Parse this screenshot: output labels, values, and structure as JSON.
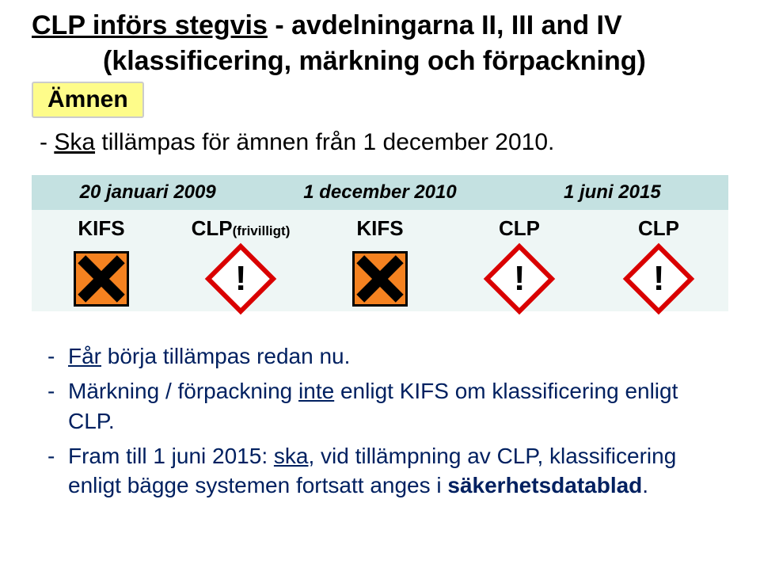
{
  "title": {
    "line1_underlined": "CLP införs stegvis",
    "line1_rest": " - avdelningarna II, III and IV",
    "line2": "(klassificering, märkning och förpackning)"
  },
  "amnen_label": "Ämnen",
  "ska_line": {
    "dash": "-  ",
    "underlined": "Ska",
    "rest": " tillämpas för ämnen från 1 december 2010."
  },
  "table": {
    "header_bg": "#c4e1e1",
    "row_bg": "#eef6f5",
    "headers": [
      "20 januari 2009",
      "1 december 2010",
      "1 juni 2015"
    ],
    "labels": [
      {
        "text": "KIFS",
        "sub": ""
      },
      {
        "text": "CLP",
        "sub": "(frivilligt)"
      },
      {
        "text": "KIFS",
        "sub": ""
      },
      {
        "text": "CLP",
        "sub": ""
      },
      {
        "text": "CLP",
        "sub": ""
      }
    ],
    "icons": [
      "kifs",
      "clp",
      "kifs",
      "clp",
      "clp"
    ],
    "kifs_bg": "#f58220",
    "clp_border": "#d90000"
  },
  "lower": [
    {
      "parts": [
        {
          "u": true,
          "t": "Får"
        },
        {
          "u": false,
          "t": " börja tillämpas redan nu."
        }
      ]
    },
    {
      "parts": [
        {
          "u": false,
          "t": "Märkning / förpackning "
        },
        {
          "u": true,
          "t": "inte"
        },
        {
          "u": false,
          "t": " enligt KIFS om klassificering enligt CLP."
        }
      ]
    },
    {
      "parts": [
        {
          "u": false,
          "t": "Fram till 1 juni 2015: "
        },
        {
          "u": true,
          "t": "ska"
        },
        {
          "u": false,
          "t": ", vid tillämpning av CLP, klassificering enligt bägge systemen fortsatt anges i "
        },
        {
          "u": false,
          "t": "säkerhetsdatablad",
          "bold": true
        },
        {
          "u": false,
          "t": "."
        }
      ]
    }
  ],
  "lower_text_color": "#002060"
}
